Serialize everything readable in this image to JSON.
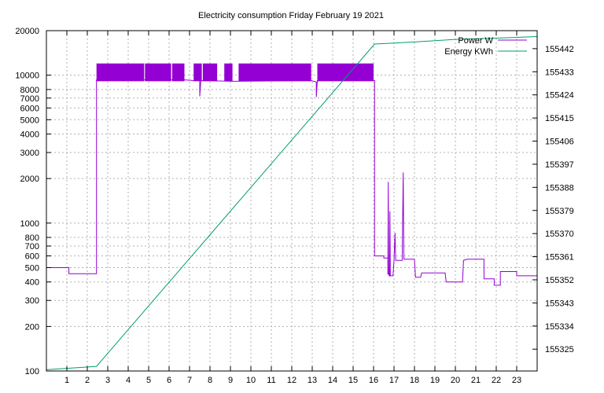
{
  "chart_data": {
    "type": "line",
    "title": "Electricity consumption Friday February 19 2021",
    "xlabel": "",
    "ylabel": "",
    "y2label": "",
    "xlim": [
      0,
      24
    ],
    "ylim": [
      100,
      20000
    ],
    "y2lim": [
      155316.5,
      155449
    ],
    "y_scale": "log",
    "grid": true,
    "legend_position": "top-right",
    "x_ticks": [
      1,
      2,
      3,
      4,
      5,
      6,
      7,
      8,
      9,
      10,
      11,
      12,
      13,
      14,
      15,
      16,
      17,
      18,
      19,
      20,
      21,
      22,
      23
    ],
    "y_ticks": [
      100,
      200,
      300,
      400,
      500,
      600,
      700,
      800,
      1000,
      2000,
      3000,
      4000,
      5000,
      6000,
      7000,
      8000,
      10000,
      20000
    ],
    "y2_ticks": [
      155325,
      155334,
      155343,
      155352,
      155361,
      155370,
      155379,
      155388,
      155397,
      155406,
      155415,
      155424,
      155433,
      155442
    ],
    "series": [
      {
        "name": "Power W",
        "axis": "y",
        "color": "#9400d3",
        "band_low": 9100,
        "band_high": 12000,
        "bands": [
          [
            2.45,
            4.78
          ],
          [
            4.82,
            6.1
          ],
          [
            6.15,
            6.75
          ],
          [
            7.2,
            7.6
          ],
          [
            7.65,
            8.35
          ],
          [
            8.7,
            9.1
          ],
          [
            9.4,
            12.95
          ],
          [
            13.25,
            16.0
          ]
        ],
        "points": [
          [
            0,
            500
          ],
          [
            1.1,
            500
          ],
          [
            1.1,
            455
          ],
          [
            2.45,
            455
          ],
          [
            2.45,
            9300
          ],
          [
            6.75,
            9300
          ],
          [
            7.2,
            9200
          ],
          [
            7.5,
            9200
          ],
          [
            7.5,
            7200
          ],
          [
            7.55,
            9200
          ],
          [
            9.1,
            9100
          ],
          [
            9.3,
            9100
          ],
          [
            12.95,
            9200
          ],
          [
            13.2,
            9000
          ],
          [
            13.2,
            7100
          ],
          [
            13.25,
            9200
          ],
          [
            16.0,
            9200
          ],
          [
            16.05,
            9200
          ],
          [
            16.05,
            600
          ],
          [
            16.5,
            600
          ],
          [
            16.5,
            580
          ],
          [
            16.7,
            580
          ],
          [
            16.7,
            450
          ],
          [
            16.72,
            1900
          ],
          [
            16.74,
            450
          ],
          [
            16.78,
            440
          ],
          [
            16.8,
            1200
          ],
          [
            16.82,
            440
          ],
          [
            16.95,
            440
          ],
          [
            17.0,
            560
          ],
          [
            17.05,
            860
          ],
          [
            17.08,
            560
          ],
          [
            17.4,
            560
          ],
          [
            17.45,
            2200
          ],
          [
            17.48,
            570
          ],
          [
            18.0,
            570
          ],
          [
            18.05,
            430
          ],
          [
            18.3,
            430
          ],
          [
            18.35,
            460
          ],
          [
            19.5,
            460
          ],
          [
            19.55,
            400
          ],
          [
            20.35,
            400
          ],
          [
            20.4,
            560
          ],
          [
            20.6,
            570
          ],
          [
            21.4,
            570
          ],
          [
            21.4,
            420
          ],
          [
            21.9,
            420
          ],
          [
            21.9,
            380
          ],
          [
            22.2,
            380
          ],
          [
            22.2,
            470
          ],
          [
            23.0,
            470
          ],
          [
            23.0,
            440
          ],
          [
            24,
            440
          ]
        ]
      },
      {
        "name": "Energy KWh",
        "axis": "y2",
        "color": "#009e73",
        "points": [
          [
            0,
            155317
          ],
          [
            2.45,
            155318.3
          ],
          [
            16.05,
            155443.8
          ],
          [
            18,
            155444.6
          ],
          [
            20,
            155445.6
          ],
          [
            22,
            155446.1
          ],
          [
            24,
            155446.7
          ]
        ]
      }
    ]
  }
}
